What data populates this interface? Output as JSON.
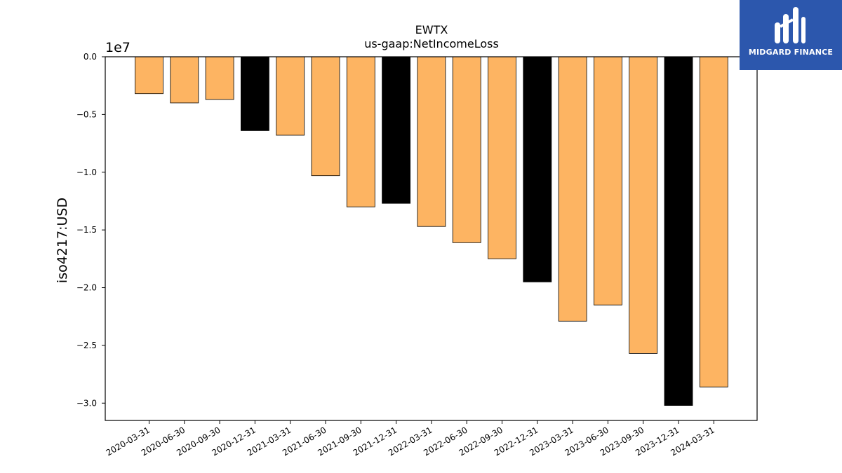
{
  "chart_data": {
    "type": "bar",
    "title": "EWTX",
    "subtitle": "us-gaap:NetIncomeLoss",
    "ylabel": "iso4217:USD",
    "xlabel": "",
    "y_offset_label": "1e7",
    "ylim": [
      -3.15,
      0.0
    ],
    "yticks": [
      0.0,
      -0.5,
      -1.0,
      -1.5,
      -2.0,
      -2.5,
      -3.0
    ],
    "ytick_labels": [
      "0.0",
      "−0.5",
      "−1.0",
      "−1.5",
      "−2.0",
      "−2.5",
      "−3.0"
    ],
    "categories": [
      "2020-03-31",
      "2020-06-30",
      "2020-09-30",
      "2020-12-31",
      "2021-03-31",
      "2021-06-30",
      "2021-09-30",
      "2021-12-31",
      "2022-03-31",
      "2022-06-30",
      "2022-09-30",
      "2022-12-31",
      "2023-03-31",
      "2023-06-30",
      "2023-09-30",
      "2023-12-31",
      "2024-03-31"
    ],
    "values": [
      -0.32,
      -0.4,
      -0.37,
      -0.64,
      -0.68,
      -1.03,
      -1.3,
      -1.27,
      -1.47,
      -1.61,
      -1.75,
      -1.95,
      -2.29,
      -2.15,
      -2.57,
      -3.02,
      -2.86
    ],
    "bar_colors": [
      "#fdb462",
      "#fdb462",
      "#fdb462",
      "#000000",
      "#fdb462",
      "#fdb462",
      "#fdb462",
      "#000000",
      "#fdb462",
      "#fdb462",
      "#fdb462",
      "#000000",
      "#fdb462",
      "#fdb462",
      "#fdb462",
      "#000000",
      "#fdb462"
    ],
    "grid": false
  },
  "logo": {
    "text": "MIDGARD FINANCE",
    "background": "#2c57ad",
    "icon": "midgard-logo-icon"
  }
}
